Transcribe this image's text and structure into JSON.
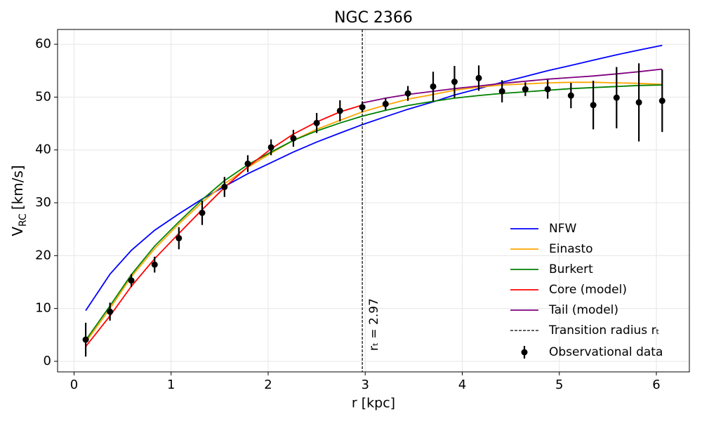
{
  "chart_data": {
    "type": "line",
    "title": "NGC 2366",
    "x_label": "r [kpc]",
    "y_label": {
      "symbol": "V",
      "subscript": "RC",
      "unit": "[km/s]"
    },
    "xlim": [
      -0.17,
      6.34
    ],
    "ylim": [
      -2,
      62.8
    ],
    "xticks": [
      0,
      1,
      2,
      3,
      4,
      5,
      6
    ],
    "yticks": [
      0,
      10,
      20,
      30,
      40,
      50,
      60
    ],
    "grid": true,
    "legend": "lower right",
    "series": [
      {
        "name": "NFW",
        "color": "#0000ff",
        "x": [
          0.12,
          0.37,
          0.59,
          0.83,
          1.08,
          1.32,
          1.55,
          1.79,
          2.03,
          2.26,
          2.5,
          2.74,
          2.97,
          3.21,
          3.44,
          3.7,
          3.92,
          4.17,
          4.41,
          4.65,
          4.88,
          5.12,
          5.35,
          5.59,
          5.82,
          6.06
        ],
        "values": [
          9.6,
          16.5,
          21.0,
          24.8,
          27.9,
          30.7,
          33.1,
          35.5,
          37.6,
          39.6,
          41.5,
          43.2,
          44.8,
          46.3,
          47.7,
          49.1,
          50.4,
          51.6,
          52.8,
          53.9,
          55.0,
          56.0,
          57.0,
          58.0,
          58.9,
          59.8
        ]
      },
      {
        "name": "Einasto",
        "color": "#ffa500",
        "x": [
          0.12,
          0.37,
          0.59,
          0.83,
          1.08,
          1.32,
          1.55,
          1.79,
          2.03,
          2.26,
          2.5,
          2.74,
          2.97,
          3.21,
          3.44,
          3.7,
          3.92,
          4.17,
          4.41,
          4.65,
          4.88,
          5.12,
          5.35,
          5.59,
          5.82,
          6.06
        ],
        "values": [
          3.6,
          10.0,
          16.0,
          21.3,
          26.0,
          30.1,
          33.6,
          36.7,
          39.4,
          41.8,
          43.9,
          45.6,
          47.2,
          48.5,
          49.6,
          50.5,
          51.3,
          51.9,
          52.3,
          52.5,
          52.7,
          52.8,
          52.8,
          52.7,
          52.6,
          52.4
        ]
      },
      {
        "name": "Burkert",
        "color": "#008000",
        "x": [
          0.12,
          0.37,
          0.59,
          0.83,
          1.08,
          1.32,
          1.55,
          1.79,
          2.03,
          2.26,
          2.5,
          2.74,
          2.97,
          3.21,
          3.44,
          3.7,
          3.92,
          4.17,
          4.41,
          4.65,
          4.88,
          5.12,
          5.35,
          5.59,
          5.82,
          6.06
        ],
        "values": [
          4.0,
          10.5,
          16.4,
          21.8,
          26.4,
          30.6,
          34.2,
          37.2,
          39.6,
          41.8,
          43.6,
          45.1,
          46.4,
          47.5,
          48.4,
          49.2,
          49.8,
          50.3,
          50.7,
          51.0,
          51.3,
          51.6,
          51.8,
          52.0,
          52.2,
          52.3
        ]
      },
      {
        "name": "Core (model)",
        "color": "#ff0000",
        "x": [
          0.12,
          0.37,
          0.59,
          0.83,
          1.08,
          1.32,
          1.55,
          1.79,
          2.03,
          2.26,
          2.5,
          2.74,
          2.97
        ],
        "values": [
          2.8,
          8.6,
          14.2,
          19.4,
          24.2,
          28.7,
          32.9,
          36.8,
          40.2,
          43.0,
          45.3,
          47.2,
          48.5
        ]
      },
      {
        "name": "Tail (model)",
        "color": "#800080",
        "x": [
          2.97,
          3.21,
          3.44,
          3.7,
          3.92,
          4.17,
          4.41,
          4.65,
          4.88,
          5.12,
          5.35,
          5.59,
          5.82,
          6.06
        ],
        "values": [
          48.9,
          49.8,
          50.5,
          51.1,
          51.6,
          52.1,
          52.6,
          53.0,
          53.4,
          53.7,
          54.0,
          54.4,
          54.8,
          55.3
        ]
      }
    ],
    "vline": {
      "name": "Transition radius rₜ",
      "label": "rₜ = 2.97",
      "value": 2.97,
      "color": "#000000"
    },
    "observations": {
      "name": "Observational data",
      "color": "#000000",
      "x": [
        0.12,
        0.37,
        0.59,
        0.83,
        1.08,
        1.32,
        1.55,
        1.79,
        2.03,
        2.26,
        2.5,
        2.74,
        2.97,
        3.21,
        3.44,
        3.7,
        3.92,
        4.17,
        4.41,
        4.65,
        4.88,
        5.12,
        5.35,
        5.59,
        5.82,
        6.06
      ],
      "values": [
        4.1,
        9.4,
        15.3,
        18.3,
        23.3,
        28.1,
        33.0,
        37.4,
        40.5,
        42.2,
        45.1,
        47.4,
        48.1,
        48.7,
        50.7,
        52.0,
        52.9,
        53.6,
        51.1,
        51.5,
        51.5,
        50.3,
        48.5,
        49.9,
        49.0,
        49.3
      ],
      "errors": [
        3.2,
        1.7,
        1.2,
        1.5,
        2.1,
        2.3,
        1.9,
        1.6,
        1.5,
        1.6,
        1.9,
        2.0,
        1.0,
        1.1,
        1.4,
        2.8,
        3.0,
        2.4,
        2.1,
        1.3,
        1.8,
        2.4,
        4.6,
        5.8,
        7.4,
        5.9
      ]
    }
  }
}
